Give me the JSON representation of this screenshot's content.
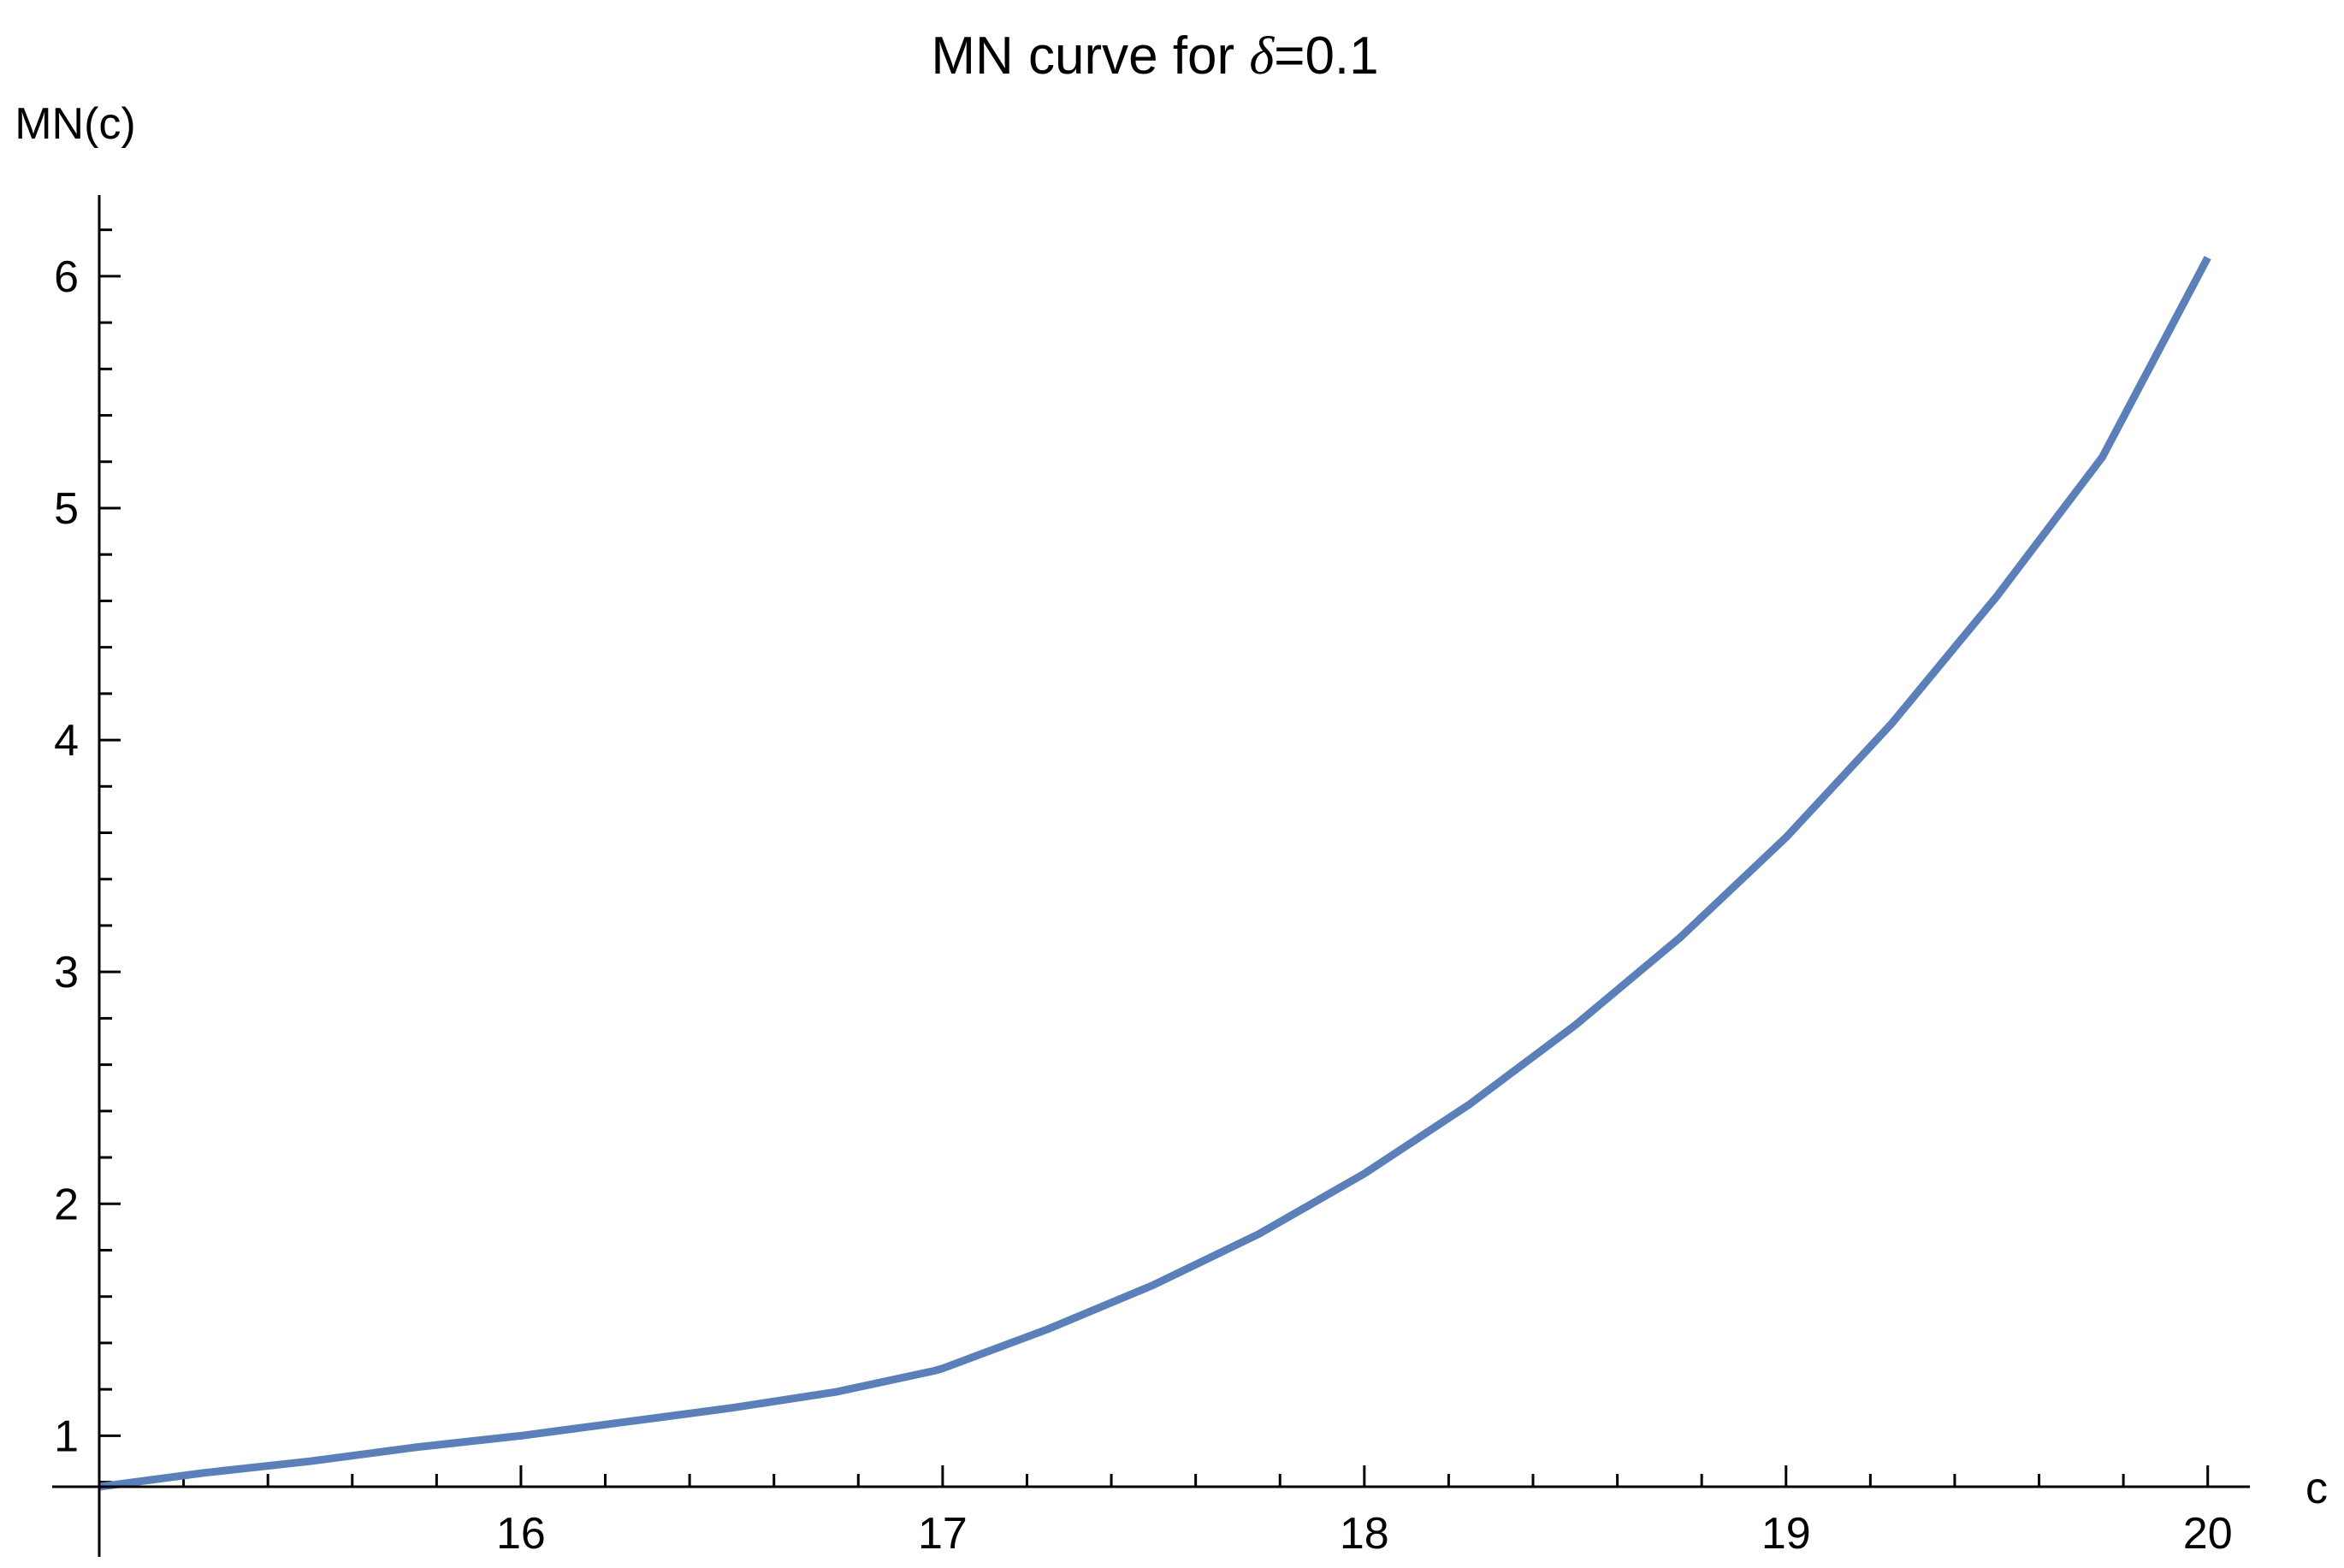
{
  "chart_data": {
    "type": "line",
    "title_prefix": "MN curve for ",
    "title_symbol": "δ",
    "title_suffix": "=0.1",
    "xlabel": "c",
    "ylabel": "MN(c)",
    "xlim": [
      15.0,
      20.1
    ],
    "ylim": [
      0.78,
      6.35
    ],
    "x_ticks": [
      16,
      17,
      18,
      19,
      20
    ],
    "x_minor_step": 0.2,
    "y_ticks": [
      1,
      2,
      3,
      4,
      5,
      6
    ],
    "y_minor_step": 0.2,
    "grid": false,
    "series": [
      {
        "name": "MN(c)",
        "color": "#5b7fb9",
        "x": [
          15.0,
          15.25,
          15.5,
          15.75,
          16.0,
          16.25,
          16.5,
          16.75,
          16.98,
          17.0,
          17.25,
          17.5,
          17.75,
          18.0,
          18.25,
          18.5,
          18.75,
          19.0,
          19.25,
          19.5,
          19.75,
          20.0
        ],
        "values": [
          0.78,
          0.84,
          0.89,
          0.95,
          1.0,
          1.06,
          1.12,
          1.19,
          1.28,
          1.29,
          1.46,
          1.65,
          1.87,
          2.13,
          2.43,
          2.77,
          3.15,
          3.58,
          4.07,
          4.62,
          5.22,
          6.08
        ]
      }
    ]
  }
}
